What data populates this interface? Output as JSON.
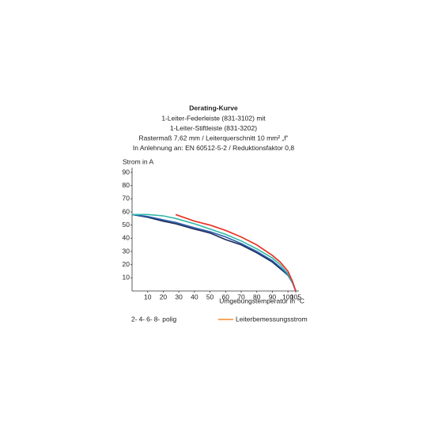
{
  "chart_data": {
    "type": "line",
    "title": "Derating-Kurve",
    "subtitle": [
      "1-Leiter-Federleiste (831-3102) mit",
      "1-Leiter-Stiftleiste (831-3202)",
      "Rastermaß 7,62 mm / Leiterquerschnitt 10 mm² „f“",
      "In Anlehnung an: EN 60512-5-2 / Reduktionsfaktor 0,8"
    ],
    "y_label": "Strom in A",
    "x_label": "Umgebungstemperatur in °C",
    "legend_suffix": "polig",
    "x": [
      0,
      10,
      20,
      28,
      40,
      50,
      60,
      70,
      80,
      90,
      95,
      100,
      103,
      105
    ],
    "series": [
      {
        "name": "Leiterbemessungsstrom",
        "color": "#f28c28",
        "values": [
          null,
          null,
          null,
          58,
          53,
          50,
          46,
          41,
          35,
          27,
          22,
          15,
          7,
          0
        ]
      },
      {
        "name": "8-",
        "color": "#1b2a55",
        "values": [
          58,
          56,
          53,
          51,
          47,
          44,
          39,
          35,
          29,
          22,
          17,
          12,
          6,
          0
        ]
      },
      {
        "name": "6-",
        "color": "#2b5fb0",
        "values": [
          58,
          56.5,
          54,
          52,
          48,
          45,
          41,
          36,
          30,
          23,
          18,
          12,
          6,
          0
        ]
      },
      {
        "name": "4-",
        "color": "#2fb8a8",
        "values": [
          58,
          58,
          57,
          55,
          51,
          47,
          43,
          38,
          32,
          25,
          20,
          13,
          6,
          0
        ]
      },
      {
        "name": "2-",
        "color": "#e8302a",
        "values": [
          null,
          null,
          null,
          58,
          53,
          50,
          46,
          41,
          35,
          27,
          22,
          15,
          7,
          0
        ]
      }
    ],
    "xlim": [
      0,
      105
    ],
    "ylim": [
      0,
      90
    ],
    "xticks": [
      10,
      20,
      30,
      40,
      50,
      60,
      70,
      80,
      90,
      100,
      105
    ],
    "yticks": [
      10,
      20,
      30,
      40,
      50,
      60,
      70,
      80,
      90
    ]
  }
}
